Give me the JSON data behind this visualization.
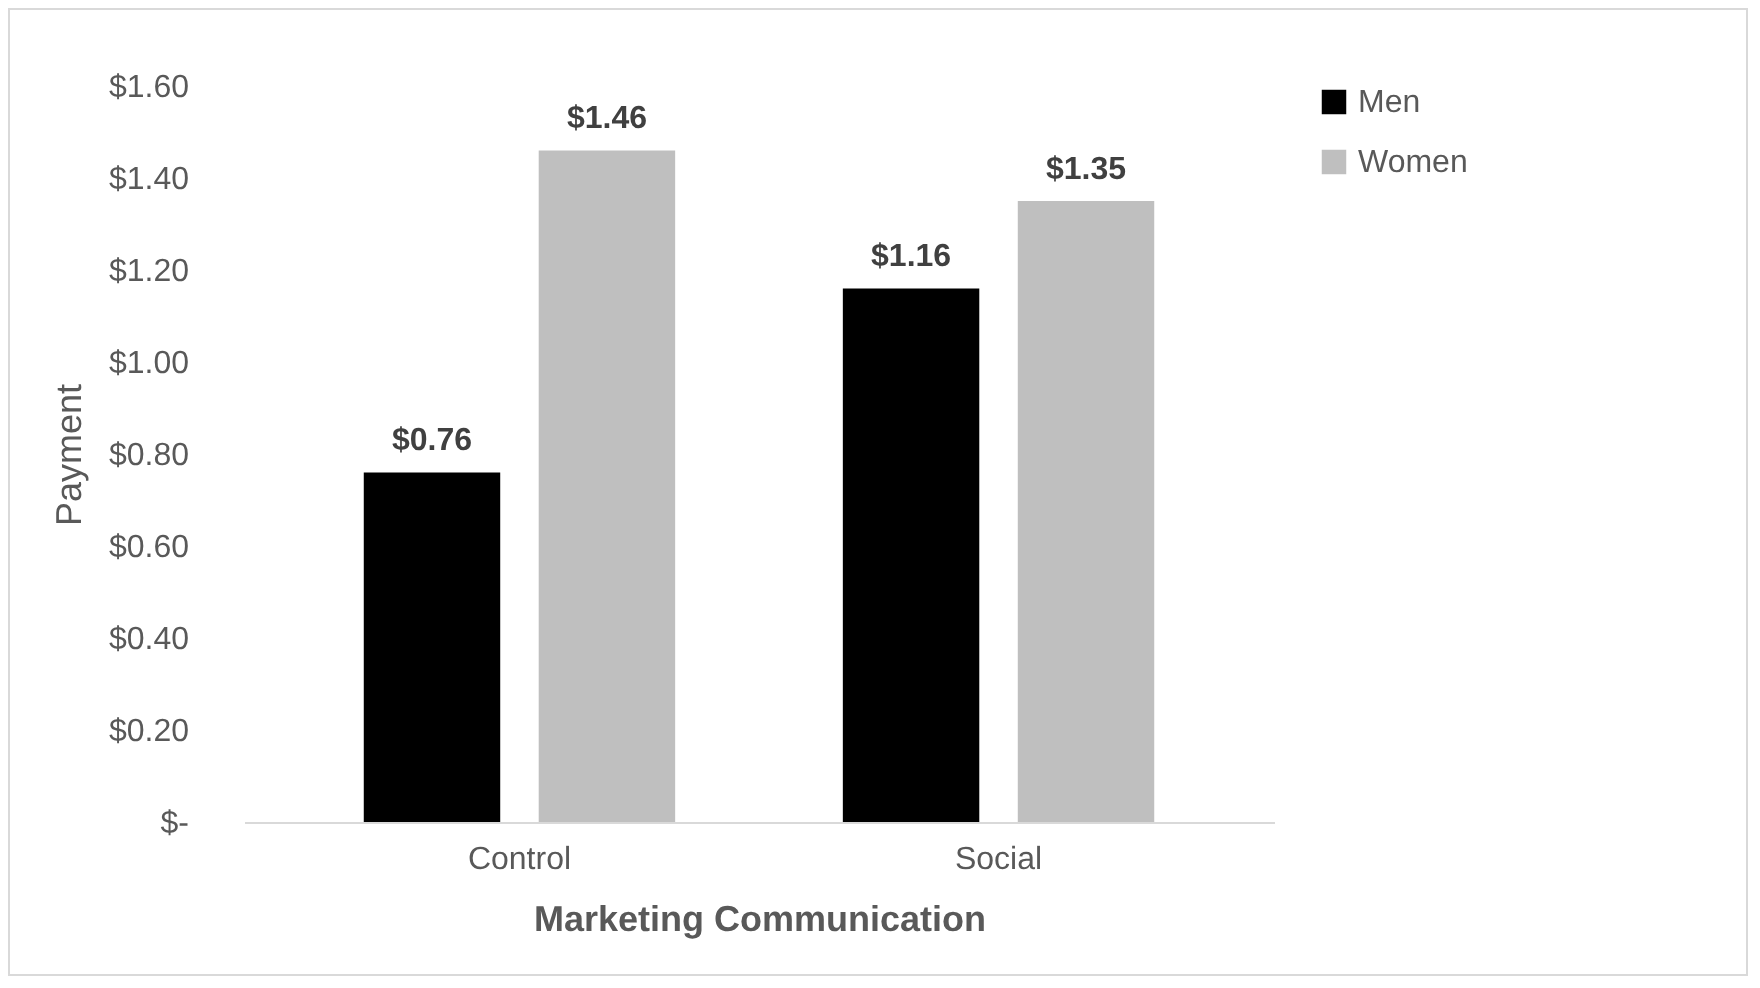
{
  "chart_data": {
    "type": "bar",
    "xlabel": "Marketing Communication",
    "ylabel": "Payment",
    "categories": [
      "Control",
      "Social"
    ],
    "series": [
      {
        "name": "Men",
        "color": "#000000",
        "values": [
          0.76,
          1.16
        ],
        "value_labels": [
          "$0.76",
          "$1.16"
        ]
      },
      {
        "name": "Women",
        "color": "#bfbfbf",
        "values": [
          1.46,
          1.35
        ],
        "value_labels": [
          "$1.46",
          "$1.35"
        ]
      }
    ],
    "ylim": [
      0,
      1.6
    ],
    "yticks": [
      {
        "value": 0,
        "label": "$-"
      },
      {
        "value": 0.2,
        "label": "$0.20"
      },
      {
        "value": 0.4,
        "label": "$0.40"
      },
      {
        "value": 0.6,
        "label": "$0.60"
      },
      {
        "value": 0.8,
        "label": "$0.80"
      },
      {
        "value": 1,
        "label": "$1.00"
      },
      {
        "value": 1.2,
        "label": "$1.20"
      },
      {
        "value": 1.4,
        "label": "$1.40"
      },
      {
        "value": 1.6,
        "label": "$1.60"
      }
    ],
    "grid": false,
    "legend": "right"
  }
}
